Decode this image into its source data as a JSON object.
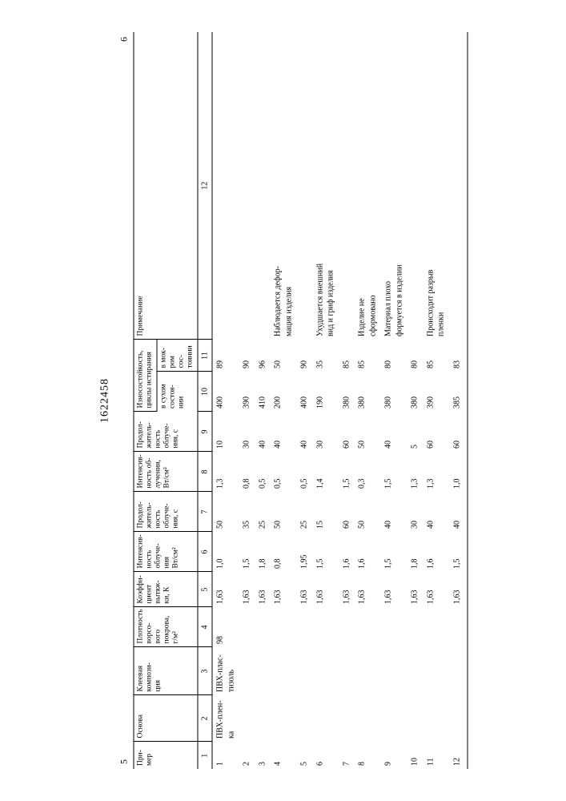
{
  "doc_number": "1622458",
  "corner_left": "5",
  "corner_right": "6",
  "headers": {
    "c1": "При-\nмер",
    "c2": "Основа",
    "c3": "Клеевая\nкомпози-\nция",
    "c4": "Плотность\nворсо-\nвого\nпокрова,\nг/м²",
    "c5": "Коэффи-\nциент\nвытяж-\nки, К",
    "c6": "Интенсив-\nность\nоблуче-\nния\nВт/см²",
    "c7": "Продол-\nжитель-\nность\nоблуче-\nния, с",
    "c8": "Интенсив-\nность об-\nлучения,\nВт/см²",
    "c9": "Продол-\nжитель-\nность\nоблуче-\nния, с",
    "c10_11": "Износостойкость,\nциклы истирания",
    "c10_sub": "в сухом\nсостоя-\nнии",
    "c11_sub": "в мок-\nром сос-\nтоянии",
    "c12": "Примечание"
  },
  "colnums": [
    "1",
    "2",
    "3",
    "4",
    "5",
    "6",
    "7",
    "8",
    "9",
    "10",
    "11",
    "12"
  ],
  "rows": [
    {
      "n": "1",
      "c2": "ПВХ-плен-\nка",
      "c3": "ПВХ-плас-\nтизоль",
      "c4": "98",
      "c5": "1,63",
      "c6": "1,0",
      "c7": "50",
      "c8": "1,3",
      "c9": "10",
      "c10": "400",
      "c11": "89",
      "c12": ""
    },
    {
      "n": "2",
      "c2": "",
      "c3": "",
      "c4": "",
      "c5": "1,63",
      "c6": "1,5",
      "c7": "35",
      "c8": "0,8",
      "c9": "30",
      "c10": "390",
      "c11": "90",
      "c12": ""
    },
    {
      "n": "3",
      "c2": "",
      "c3": "",
      "c4": "",
      "c5": "1,63",
      "c6": "1,8",
      "c7": "25",
      "c8": "0,5",
      "c9": "40",
      "c10": "410",
      "c11": "96",
      "c12": ""
    },
    {
      "n": "4",
      "c2": "",
      "c3": "",
      "c4": "",
      "c5": "1,63",
      "c6": "0,8",
      "c7": "50",
      "c8": "0,5",
      "c9": "40",
      "c10": "200",
      "c11": "50",
      "c12": "Наблюдается дефор-\nмация изделия"
    },
    {
      "n": "5",
      "c2": "",
      "c3": "",
      "c4": "",
      "c5": "1,63",
      "c6": "1,95",
      "c7": "25",
      "c8": "0,5",
      "c9": "40",
      "c10": "400",
      "c11": "90",
      "c12": ""
    },
    {
      "n": "6",
      "c2": "",
      "c3": "",
      "c4": "",
      "c5": "1,63",
      "c6": "1,5",
      "c7": "15",
      "c8": "1,4",
      "c9": "30",
      "c10": "190",
      "c11": "35",
      "c12": "Ухудшается внешний\nвид и гриф изделия"
    },
    {
      "n": "7",
      "c2": "",
      "c3": "",
      "c4": "",
      "c5": "1,63",
      "c6": "1,6",
      "c7": "60",
      "c8": "1,5",
      "c9": "60",
      "c10": "380",
      "c11": "85",
      "c12": ""
    },
    {
      "n": "8",
      "c2": "",
      "c3": "",
      "c4": "",
      "c5": "1,63",
      "c6": "1,6",
      "c7": "50",
      "c8": "0,3",
      "c9": "50",
      "c10": "380",
      "c11": "85",
      "c12": "Изделие не\nсформовано"
    },
    {
      "n": "9",
      "c2": "",
      "c3": "",
      "c4": "",
      "c5": "1,63",
      "c6": "1,5",
      "c7": "40",
      "c8": "1,5",
      "c9": "40",
      "c10": "380",
      "c11": "80",
      "c12": "Материал плохо\nформуется в изделии"
    },
    {
      "n": "10",
      "c2": "",
      "c3": "",
      "c4": "",
      "c5": "1,63",
      "c6": "1,8",
      "c7": "30",
      "c8": "1,3",
      "c9": "5",
      "c10": "380",
      "c11": "80",
      "c12": ""
    },
    {
      "n": "11",
      "c2": "",
      "c3": "",
      "c4": "",
      "c5": "1,63",
      "c6": "1,6",
      "c7": "40",
      "c8": "1,3",
      "c9": "60",
      "c10": "390",
      "c11": "85",
      "c12": "Происходит разрыв\nпленки"
    },
    {
      "n": "12",
      "c2": "",
      "c3": "",
      "c4": "",
      "c5": "1,63",
      "c6": "1,5",
      "c7": "40",
      "c8": "1,0",
      "c9": "60",
      "c10": "385",
      "c11": "83",
      "c12": ""
    }
  ]
}
